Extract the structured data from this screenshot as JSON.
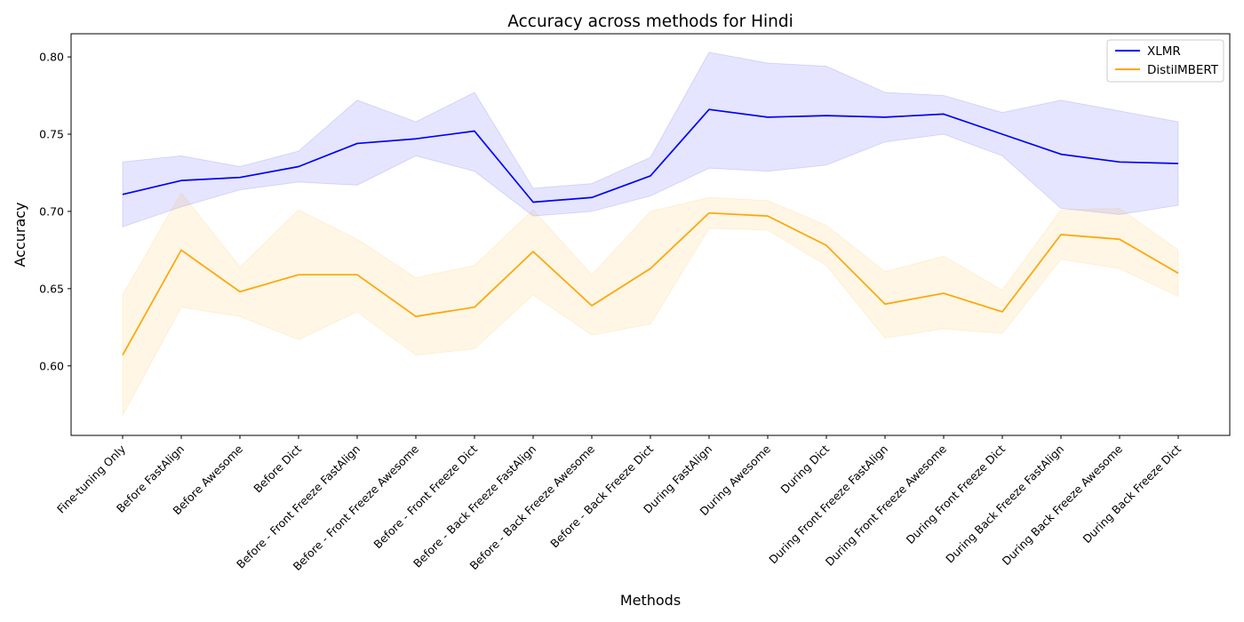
{
  "chart_data": {
    "type": "line",
    "title": "Accuracy across methods for Hindi",
    "xlabel": "Methods",
    "ylabel": "Accuracy",
    "ylim": [
      0.555,
      0.815
    ],
    "yticks": [
      "0.60",
      "0.65",
      "0.70",
      "0.75",
      "0.80"
    ],
    "grid": false,
    "legend_position": "top-right",
    "categories": [
      "Fine-tuning Only",
      "Before FastAlign",
      "Before Awesome",
      "Before Dict",
      "Before - Front Freeze FastAlign",
      "Before - Front Freeze Awesome",
      "Before - Front Freeze Dict",
      "Before - Back Freeze FastAlign",
      "Before - Back Freeze Awesome",
      "Before - Back Freeze Dict",
      "During FastAlign",
      "During Awesome",
      "During Dict",
      "During Front Freeze FastAlign",
      "During Front Freeze Awesome",
      "During Front Freeze Dict",
      "During Back Freeze FastAlign",
      "During Back Freeze Awesome",
      "During Back Freeze Dict"
    ],
    "series": [
      {
        "name": "XLMR",
        "color": "#0000ff",
        "band_color": "#0000ff",
        "values": [
          0.711,
          0.72,
          0.722,
          0.729,
          0.744,
          0.747,
          0.752,
          0.706,
          0.709,
          0.723,
          0.766,
          0.761,
          0.762,
          0.761,
          0.763,
          0.75,
          0.737,
          0.732,
          0.731
        ],
        "lower": [
          0.69,
          0.703,
          0.714,
          0.719,
          0.717,
          0.736,
          0.726,
          0.697,
          0.7,
          0.71,
          0.728,
          0.726,
          0.73,
          0.745,
          0.75,
          0.736,
          0.702,
          0.698,
          0.704
        ],
        "upper": [
          0.732,
          0.736,
          0.729,
          0.739,
          0.772,
          0.758,
          0.777,
          0.715,
          0.718,
          0.735,
          0.803,
          0.796,
          0.794,
          0.777,
          0.775,
          0.764,
          0.772,
          0.765,
          0.758
        ]
      },
      {
        "name": "DistilMBERT",
        "color": "#ffa500",
        "band_color": "#ffa500",
        "values": [
          0.607,
          0.675,
          0.648,
          0.659,
          0.659,
          0.632,
          0.638,
          0.674,
          0.639,
          0.663,
          0.699,
          0.697,
          0.678,
          0.64,
          0.647,
          0.635,
          0.685,
          0.682,
          0.66
        ],
        "lower": [
          0.568,
          0.638,
          0.632,
          0.617,
          0.635,
          0.607,
          0.611,
          0.646,
          0.62,
          0.627,
          0.689,
          0.688,
          0.665,
          0.618,
          0.624,
          0.621,
          0.669,
          0.663,
          0.645
        ],
        "upper": [
          0.646,
          0.712,
          0.664,
          0.701,
          0.682,
          0.657,
          0.665,
          0.701,
          0.659,
          0.7,
          0.709,
          0.707,
          0.691,
          0.661,
          0.671,
          0.649,
          0.701,
          0.702,
          0.675
        ]
      }
    ]
  }
}
